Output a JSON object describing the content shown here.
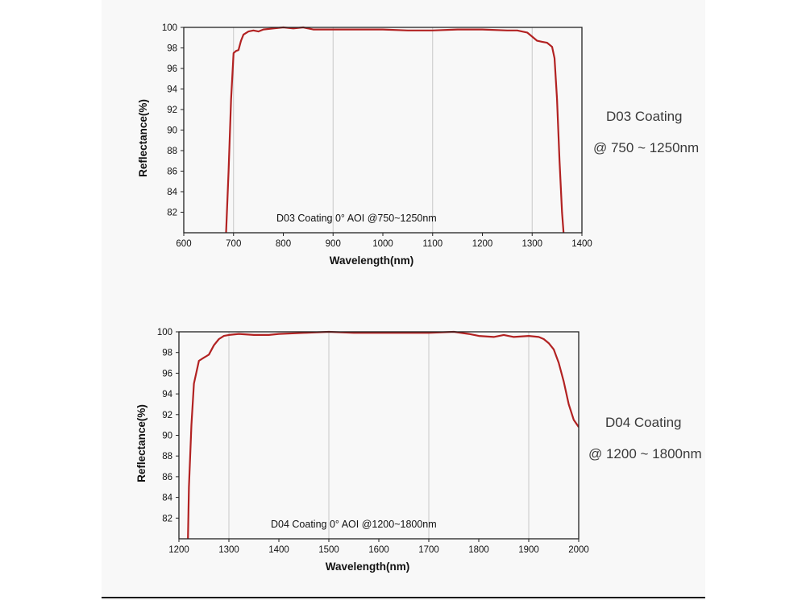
{
  "colors": {
    "curve": "#b22222",
    "grid": "#c8c8c8",
    "axis": "#222222"
  },
  "chart_data": [
    {
      "type": "line",
      "title": "D03 Coating",
      "subtitle": "@ 750 ~ 1250nm",
      "annotation": "D03 Coating  0°  AOI @750~1250nm",
      "xlabel": "Wavelength(nm)",
      "ylabel": "Reflectance(%)",
      "xlim": [
        600,
        1400
      ],
      "ylim": [
        80,
        100
      ],
      "x_ticks": [
        600,
        700,
        800,
        900,
        1000,
        1100,
        1200,
        1300,
        1400
      ],
      "y_ticks": [
        82,
        84,
        86,
        88,
        90,
        92,
        94,
        96,
        98,
        100
      ],
      "grid_x": [
        700,
        900,
        1100,
        1300
      ],
      "series": [
        {
          "name": "D03 Coating",
          "x": [
            685,
            690,
            695,
            700,
            705,
            710,
            715,
            720,
            730,
            740,
            750,
            760,
            780,
            800,
            820,
            840,
            860,
            880,
            900,
            950,
            1000,
            1050,
            1100,
            1150,
            1200,
            1250,
            1270,
            1290,
            1300,
            1310,
            1320,
            1330,
            1340,
            1345,
            1350,
            1355,
            1360,
            1363
          ],
          "y": [
            80,
            86,
            93,
            97.5,
            97.7,
            97.8,
            98.7,
            99.3,
            99.6,
            99.7,
            99.6,
            99.8,
            99.9,
            100,
            99.9,
            100,
            99.8,
            99.8,
            99.8,
            99.8,
            99.8,
            99.7,
            99.7,
            99.8,
            99.8,
            99.7,
            99.7,
            99.5,
            99.1,
            98.7,
            98.6,
            98.5,
            98.1,
            97,
            93,
            87,
            82,
            80
          ]
        }
      ]
    },
    {
      "type": "line",
      "title": "D04 Coating",
      "subtitle": "@ 1200 ~ 1800nm",
      "annotation": "D04 Coating  0°  AOI @1200~1800nm",
      "xlabel": "Wavelength(nm)",
      "ylabel": "Reflectance(%)",
      "xlim": [
        1200,
        2000
      ],
      "ylim": [
        80,
        100
      ],
      "x_ticks": [
        1200,
        1300,
        1400,
        1500,
        1600,
        1700,
        1800,
        1900,
        2000
      ],
      "y_ticks": [
        82,
        84,
        86,
        88,
        90,
        92,
        94,
        96,
        98,
        100
      ],
      "grid_x": [
        1300,
        1500,
        1700,
        1900
      ],
      "series": [
        {
          "name": "D04 Coating",
          "x": [
            1218,
            1220,
            1225,
            1230,
            1240,
            1250,
            1260,
            1270,
            1280,
            1290,
            1300,
            1320,
            1350,
            1380,
            1400,
            1450,
            1500,
            1550,
            1600,
            1650,
            1700,
            1750,
            1780,
            1800,
            1830,
            1850,
            1870,
            1900,
            1920,
            1930,
            1940,
            1950,
            1960,
            1970,
            1980,
            1990,
            2000
          ],
          "y": [
            80,
            85,
            91,
            95,
            97.2,
            97.5,
            97.8,
            98.7,
            99.3,
            99.6,
            99.7,
            99.8,
            99.7,
            99.7,
            99.8,
            99.9,
            100,
            99.9,
            99.9,
            99.9,
            99.9,
            100,
            99.8,
            99.6,
            99.5,
            99.7,
            99.5,
            99.6,
            99.5,
            99.3,
            98.9,
            98.3,
            97,
            95.2,
            93,
            91.5,
            90.8
          ]
        }
      ]
    }
  ]
}
